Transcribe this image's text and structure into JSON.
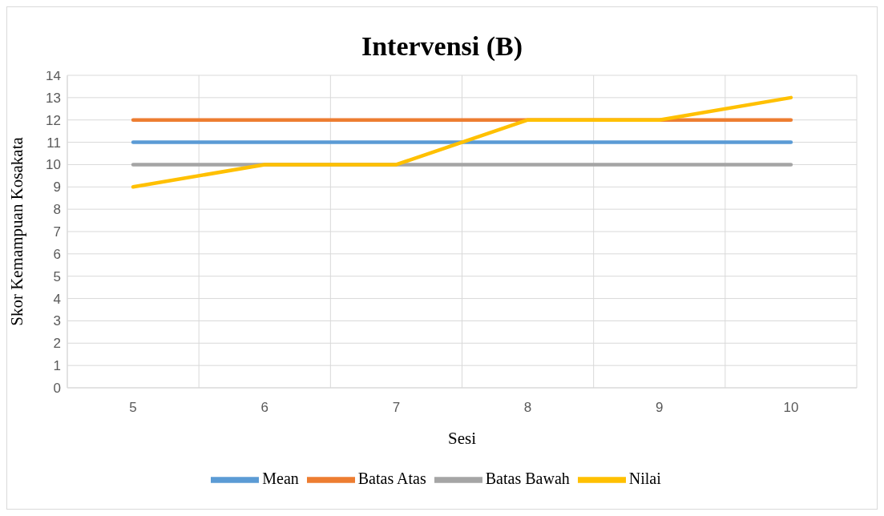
{
  "chart_data": {
    "type": "line",
    "title": "Intervensi (B)",
    "xlabel": "Sesi",
    "ylabel": "Skor Kemampuan Kosakata",
    "categories": [
      "5",
      "6",
      "7",
      "8",
      "9",
      "10"
    ],
    "series": [
      {
        "name": "Mean",
        "color": "#5b9bd5",
        "values": [
          11,
          11,
          11,
          11,
          11,
          11
        ]
      },
      {
        "name": "Batas Atas",
        "color": "#ed7d31",
        "values": [
          12,
          12,
          12,
          12,
          12,
          12
        ]
      },
      {
        "name": "Batas Bawah",
        "color": "#a5a5a5",
        "values": [
          10,
          10,
          10,
          10,
          10,
          10
        ]
      },
      {
        "name": "Nilai",
        "color": "#ffc000",
        "values": [
          9,
          10,
          10,
          12,
          12,
          13
        ]
      }
    ],
    "ylim": [
      0,
      14
    ],
    "yticks": [
      0,
      1,
      2,
      3,
      4,
      5,
      6,
      7,
      8,
      9,
      10,
      11,
      12,
      13,
      14
    ],
    "grid": true,
    "legend": "bottom",
    "marker": "none",
    "line_style": "solid"
  }
}
